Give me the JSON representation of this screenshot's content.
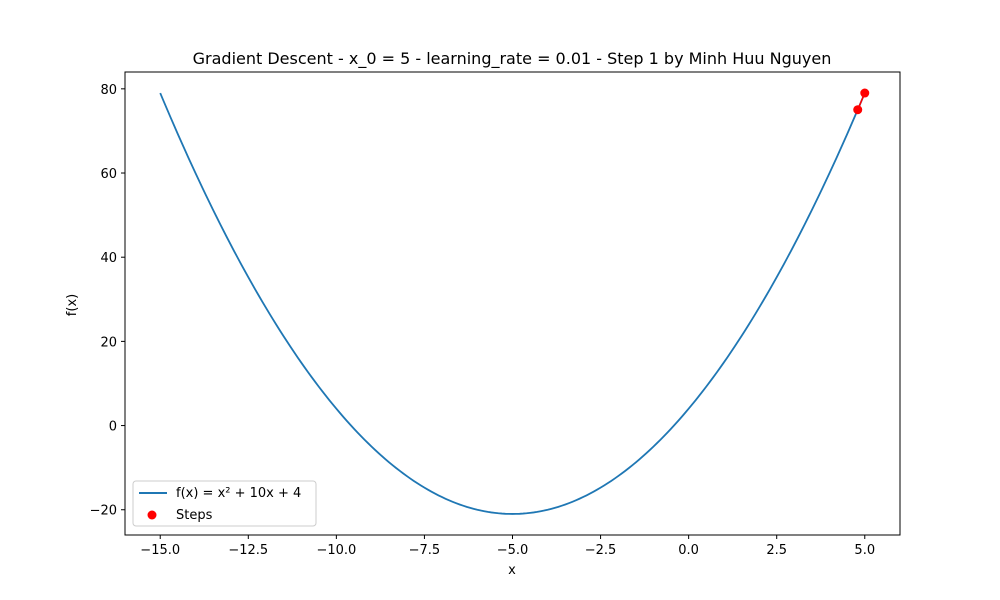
{
  "chart_data": {
    "type": "line",
    "title": "Gradient Descent - x_0 = 5 - learning_rate = 0.01 - Step 1 by Minh Huu Nguyen",
    "xlabel": "x",
    "ylabel": "f(x)",
    "xlim": [
      -16,
      6
    ],
    "ylim": [
      -26,
      84
    ],
    "xticks": [
      -15,
      -12.5,
      -10,
      -7.5,
      -5,
      -2.5,
      0,
      2.5,
      5
    ],
    "xtick_labels": [
      "−15.0",
      "−12.5",
      "−10.0",
      "−7.5",
      "−5.0",
      "−2.5",
      "0.0",
      "2.5",
      "5.0"
    ],
    "yticks": [
      -20,
      0,
      20,
      40,
      60,
      80
    ],
    "ytick_labels": [
      "−20",
      "0",
      "20",
      "40",
      "60",
      "80"
    ],
    "function": {
      "a": 1,
      "b": 10,
      "c": 4,
      "x_range": [
        -15,
        5
      ]
    },
    "series": [
      {
        "name": "f(x) = x² + 10x + 4",
        "kind": "line",
        "color": "#1f77b4"
      },
      {
        "name": "Steps",
        "kind": "scatter",
        "color": "#ff0000",
        "points": [
          {
            "x": 5.0,
            "y": 79.0
          },
          {
            "x": 4.8,
            "y": 75.04
          }
        ]
      }
    ],
    "legend_position": "lower-left",
    "grid": false
  }
}
